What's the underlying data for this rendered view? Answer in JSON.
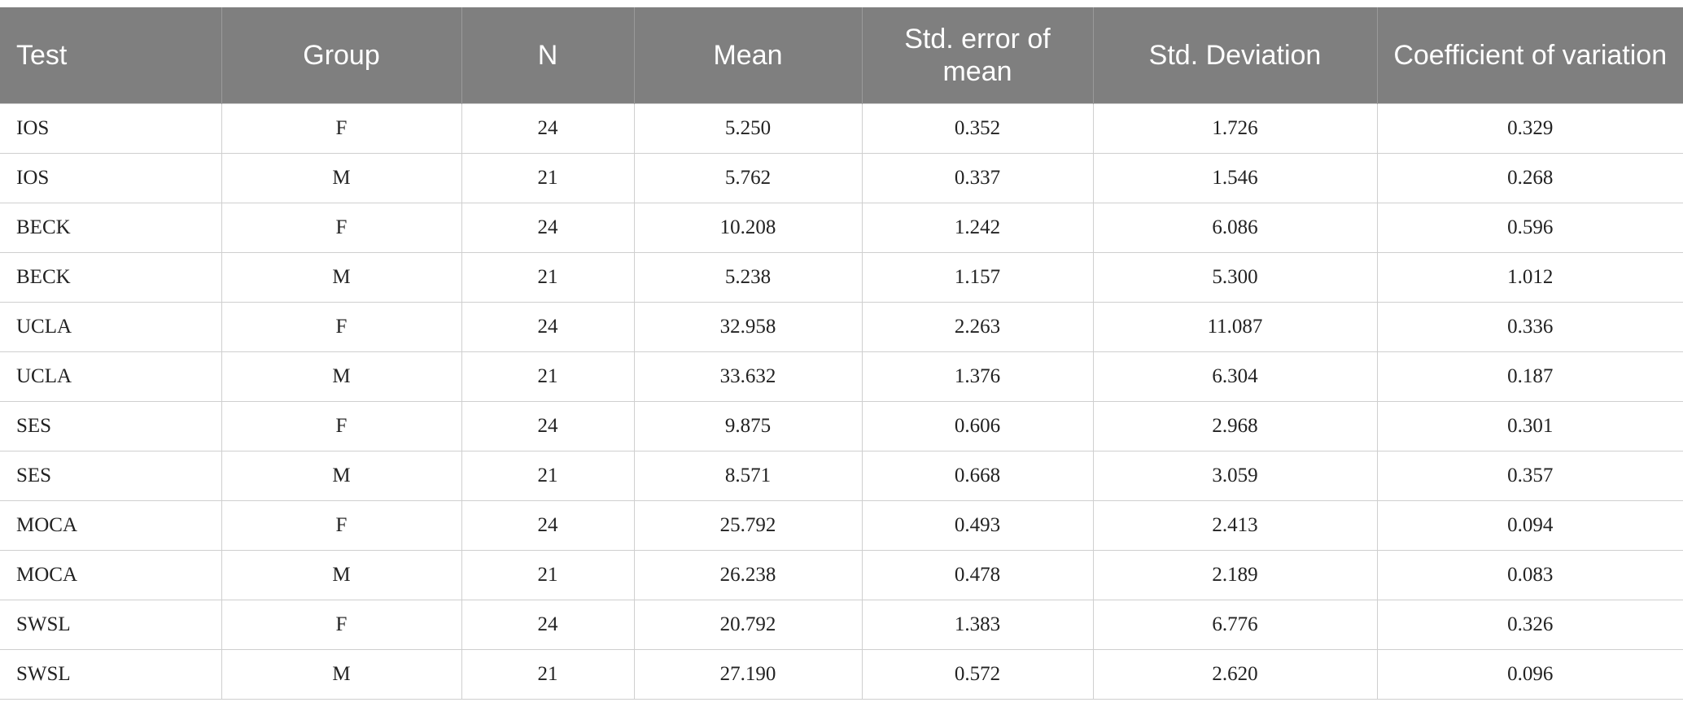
{
  "table": {
    "header": [
      "Test",
      "Group",
      "N",
      "Mean",
      "Std. error of mean",
      "Std. Deviation",
      "Coefficient of variation"
    ],
    "rows": [
      [
        "IOS",
        "F",
        "24",
        "5.250",
        "0.352",
        "1.726",
        "0.329"
      ],
      [
        "IOS",
        "M",
        "21",
        "5.762",
        "0.337",
        "1.546",
        "0.268"
      ],
      [
        "BECK",
        "F",
        "24",
        "10.208",
        "1.242",
        "6.086",
        "0.596"
      ],
      [
        "BECK",
        "M",
        "21",
        "5.238",
        "1.157",
        "5.300",
        "1.012"
      ],
      [
        "UCLA",
        "F",
        "24",
        "32.958",
        "2.263",
        "11.087",
        "0.336"
      ],
      [
        "UCLA",
        "M",
        "21",
        "33.632",
        "1.376",
        "6.304",
        "0.187"
      ],
      [
        "SES",
        "F",
        "24",
        "9.875",
        "0.606",
        "2.968",
        "0.301"
      ],
      [
        "SES",
        "M",
        "21",
        "8.571",
        "0.668",
        "3.059",
        "0.357"
      ],
      [
        "MOCA",
        "F",
        "24",
        "25.792",
        "0.493",
        "2.413",
        "0.094"
      ],
      [
        "MOCA",
        "M",
        "21",
        "26.238",
        "0.478",
        "2.189",
        "0.083"
      ],
      [
        "SWSL",
        "F",
        "24",
        "20.792",
        "1.383",
        "6.776",
        "0.326"
      ],
      [
        "SWSL",
        "M",
        "21",
        "27.190",
        "0.572",
        "2.620",
        "0.096"
      ]
    ]
  }
}
